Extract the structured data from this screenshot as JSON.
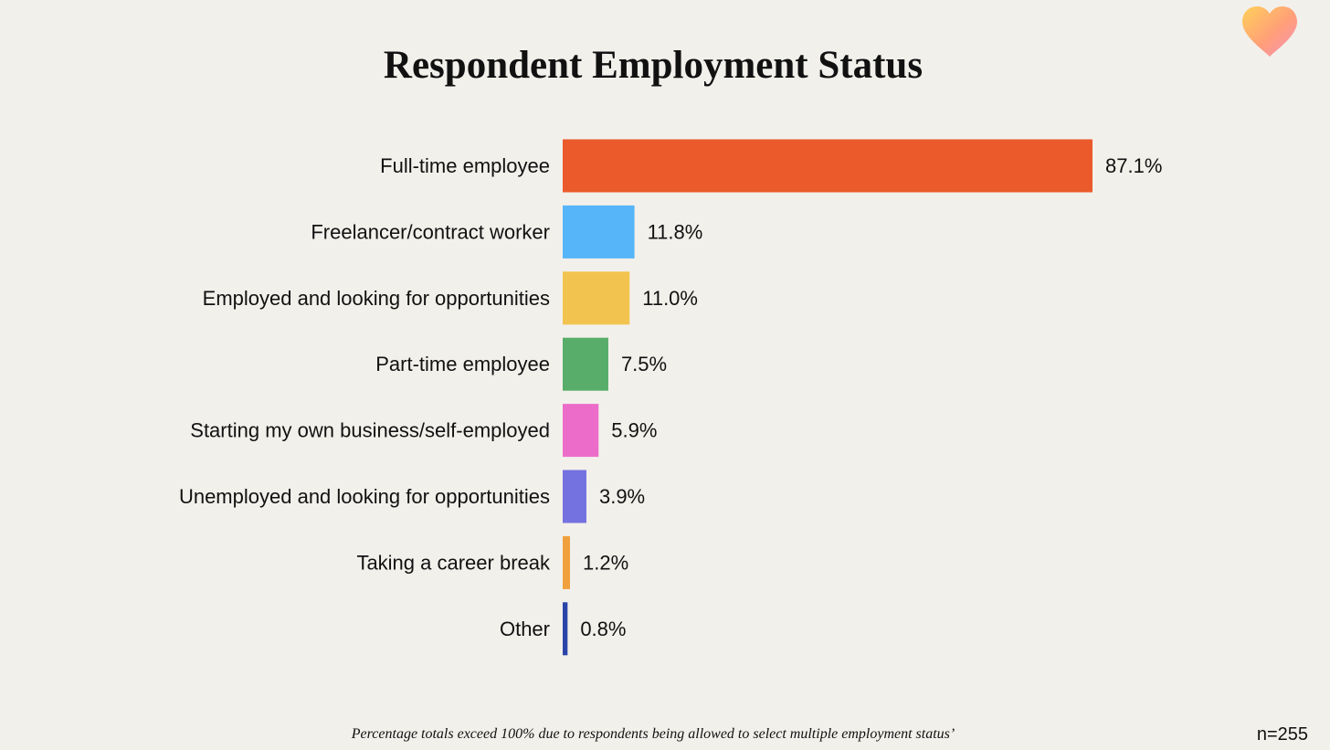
{
  "logo": {
    "icon": "heart-icon"
  },
  "footnote": "Percentage totals exceed 100% due to respondents being allowed to select multiple employment status’",
  "sample_size": "n=255",
  "chart_data": {
    "type": "bar",
    "orientation": "horizontal",
    "title": "Respondent Employment Status",
    "xlabel": "",
    "ylabel": "",
    "xlim": [
      0,
      100
    ],
    "grid": false,
    "legend": "none",
    "value_suffix": "%",
    "categories": [
      "Full-time employee",
      "Freelancer/contract worker",
      "Employed and looking for opportunities",
      "Part-time employee",
      "Starting my own business/self-employed",
      "Unemployed and looking for opportunities",
      "Taking a career break",
      "Other"
    ],
    "values": [
      87.1,
      11.8,
      11.0,
      7.5,
      5.9,
      3.9,
      1.2,
      0.8
    ],
    "value_labels": [
      "87.1%",
      "11.8%",
      "11.0%",
      "7.5%",
      "5.9%",
      "3.9%",
      "1.2%",
      "0.8%"
    ],
    "colors": [
      "#eb5a2b",
      "#56b5f8",
      "#f2c44f",
      "#57ad69",
      "#ec6dc9",
      "#7471e0",
      "#f0a03c",
      "#2a44a8"
    ]
  }
}
